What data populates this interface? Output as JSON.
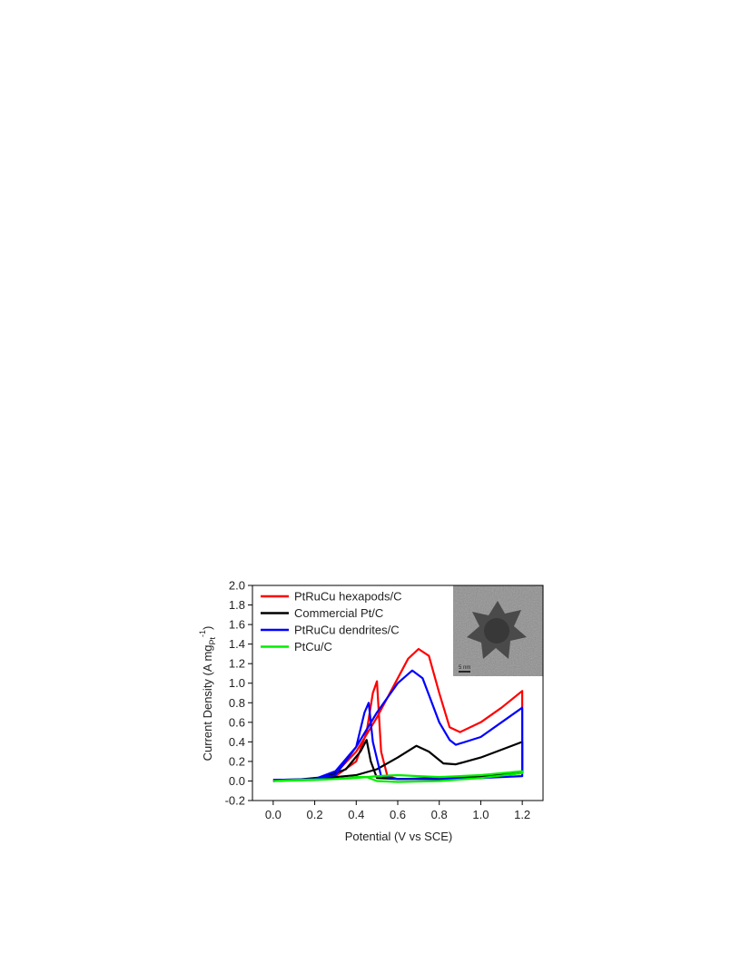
{
  "chart_data": {
    "type": "line",
    "x_label": "Potential (V vs SCE)",
    "y_label": "Current Density (A mg",
    "y_label_sub": "Pt",
    "y_label_sup": "-1",
    "y_label_end": ")",
    "inset_scale_label": "5 nm",
    "xlim": [
      -0.1,
      1.3
    ],
    "ylim": [
      -0.2,
      2.0
    ],
    "xticks": [
      {
        "value": 0,
        "label": "0.0"
      },
      0.2,
      0.4,
      0.6,
      0.8,
      {
        "value": 1,
        "label": "1.0"
      },
      1.2
    ],
    "yticks": [
      -0.2,
      {
        "value": 0,
        "label": "0.0"
      },
      0.2,
      0.4,
      0.6,
      0.8,
      {
        "value": 1,
        "label": "1.0"
      },
      1.2,
      1.4,
      1.6,
      1.8,
      {
        "value": 2,
        "label": "2.0"
      }
    ],
    "legend": "upper left",
    "series": [
      {
        "name": "PtRuCu hexapods/C",
        "color": "#ff0000",
        "x": [
          0,
          0.1,
          0.2,
          0.3,
          0.4,
          0.5,
          0.6,
          0.65,
          0.7,
          0.75,
          0.8,
          0.85,
          0.9,
          1.0,
          1.1,
          1.2,
          1.2,
          1.0,
          0.8,
          0.6,
          0.55,
          0.52,
          0.5,
          0.48,
          0.45,
          0.4,
          0.3,
          0.2,
          0.1,
          0
        ],
        "values": [
          0.01,
          0.01,
          0.02,
          0.08,
          0.3,
          0.65,
          1.05,
          1.25,
          1.35,
          1.28,
          0.9,
          0.55,
          0.5,
          0.6,
          0.75,
          0.92,
          0.08,
          0.04,
          0.02,
          0.02,
          0.05,
          0.3,
          1.02,
          0.9,
          0.5,
          0.2,
          0.05,
          0.02,
          0.01,
          0
        ]
      },
      {
        "name": "Commercial Pt/C",
        "color": "#000000",
        "x": [
          0,
          0.2,
          0.4,
          0.5,
          0.6,
          0.69,
          0.75,
          0.82,
          0.88,
          1.0,
          1.1,
          1.2,
          1.2,
          1.0,
          0.8,
          0.6,
          0.5,
          0.47,
          0.45,
          0.42,
          0.35,
          0.25,
          0.1,
          0
        ],
        "values": [
          0.01,
          0.02,
          0.06,
          0.12,
          0.24,
          0.36,
          0.3,
          0.18,
          0.17,
          0.24,
          0.32,
          0.4,
          0.08,
          0.05,
          0.03,
          0.02,
          0.03,
          0.2,
          0.42,
          0.3,
          0.12,
          0.04,
          0.01,
          0
        ]
      },
      {
        "name": "PtRuCu dendrites/C",
        "color": "#0000ff",
        "x": [
          0,
          0.2,
          0.3,
          0.4,
          0.5,
          0.6,
          0.67,
          0.72,
          0.8,
          0.85,
          0.88,
          1.0,
          1.1,
          1.2,
          1.2,
          1.0,
          0.8,
          0.6,
          0.52,
          0.48,
          0.46,
          0.44,
          0.4,
          0.3,
          0.2,
          0
        ],
        "values": [
          0.01,
          0.02,
          0.1,
          0.35,
          0.7,
          1.0,
          1.13,
          1.05,
          0.6,
          0.42,
          0.37,
          0.45,
          0.6,
          0.75,
          0.05,
          0.03,
          0.02,
          0.02,
          0.05,
          0.4,
          0.8,
          0.7,
          0.35,
          0.06,
          0.02,
          0
        ]
      },
      {
        "name": "PtCu/C",
        "color": "#00ee00",
        "x": [
          0,
          0.2,
          0.4,
          0.5,
          0.6,
          0.7,
          0.8,
          0.9,
          1.0,
          1.1,
          1.2,
          1.2,
          1.0,
          0.8,
          0.6,
          0.5,
          0.45,
          0.4,
          0.3,
          0.1,
          0
        ],
        "values": [
          0,
          0.01,
          0.03,
          0.05,
          0.06,
          0.05,
          0.04,
          0.05,
          0.06,
          0.08,
          0.1,
          0.08,
          0.03,
          0,
          -0.01,
          0,
          0.04,
          0.04,
          0.02,
          0.01,
          0
        ]
      }
    ]
  }
}
